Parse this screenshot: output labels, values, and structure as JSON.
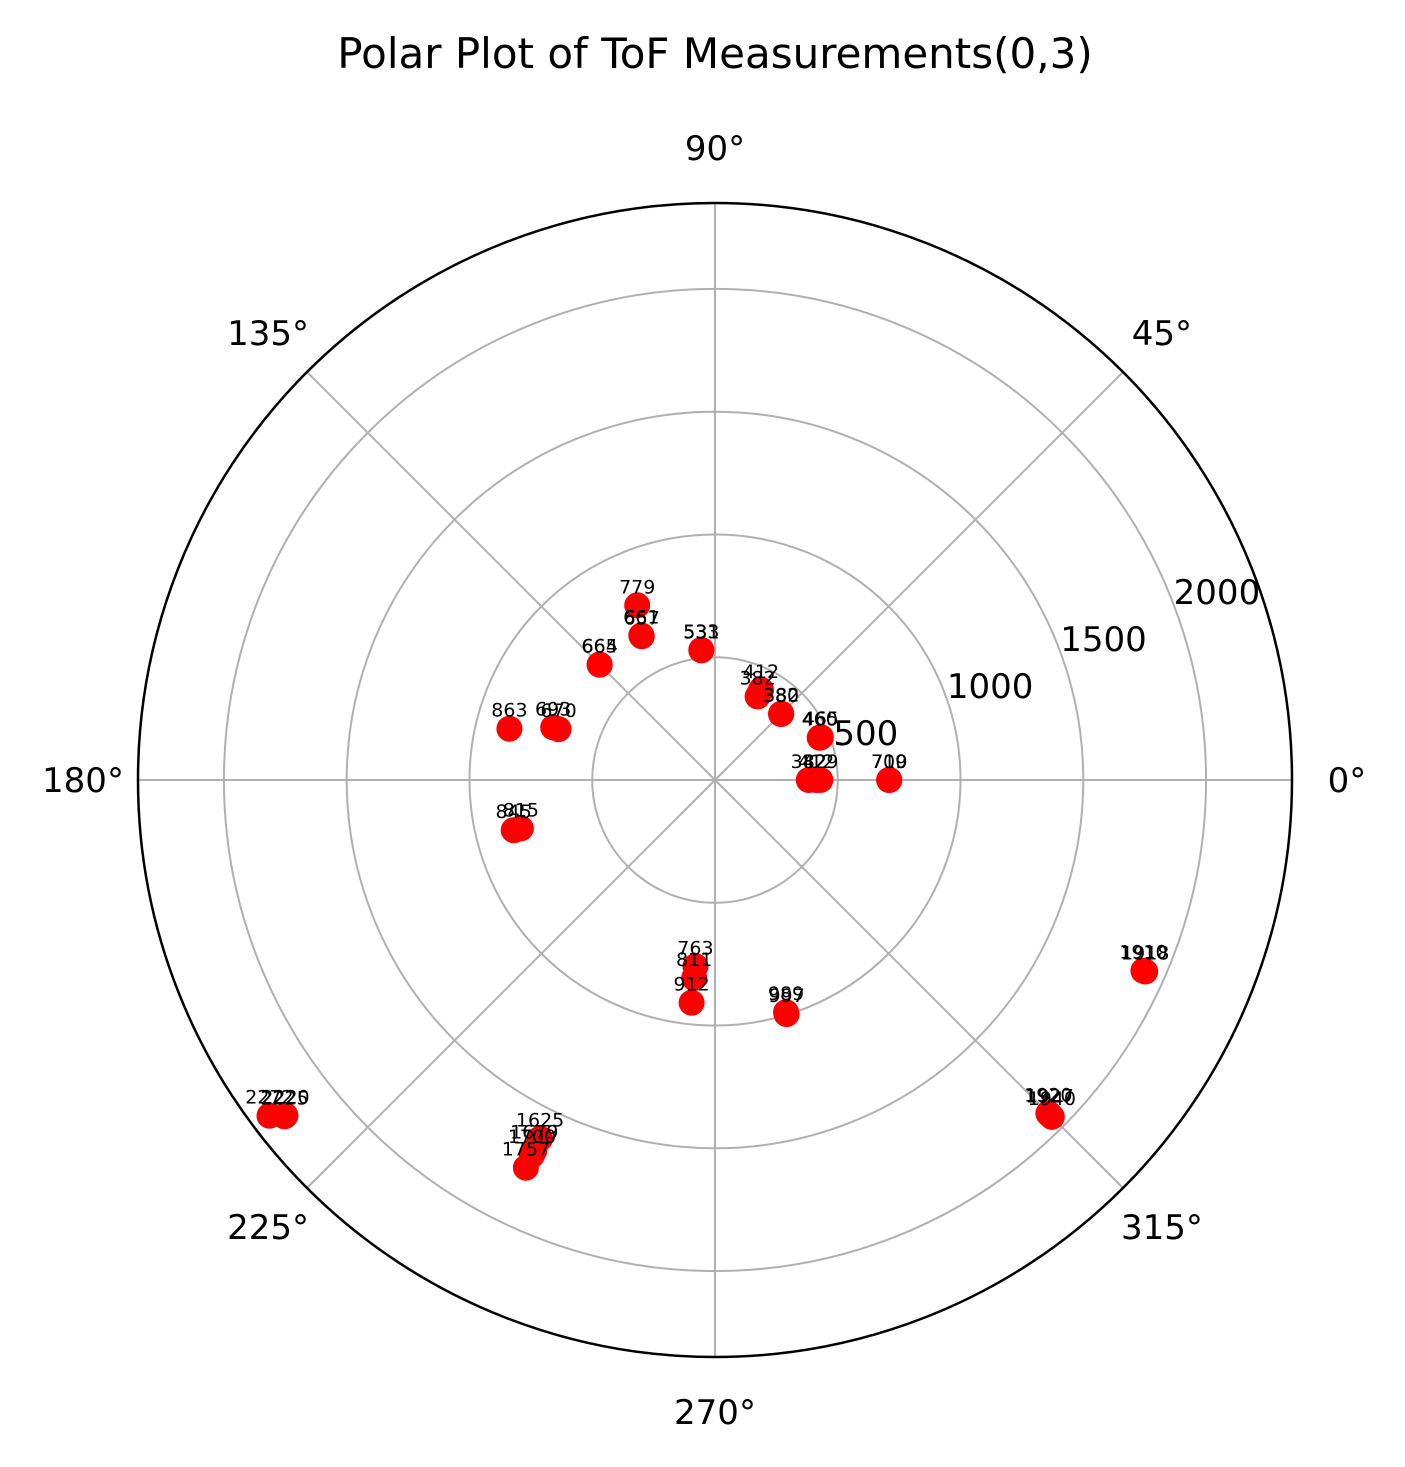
{
  "chart_data": {
    "type": "scatter",
    "projection": "polar",
    "title": "Polar Plot of ToF Measurements(0,3)",
    "theta_unit": "degrees",
    "theta_ticks": [
      "0°",
      "45°",
      "90°",
      "135°",
      "180°",
      "225°",
      "270°",
      "315°"
    ],
    "r_ticks": [
      "500",
      "1000",
      "1500",
      "2000"
    ],
    "r_tick_values": [
      500,
      1000,
      1500,
      2000
    ],
    "rlim": [
      0,
      2350
    ],
    "grid": true,
    "marker_color": "#ff0000",
    "points": [
      {
        "theta": 0,
        "r": 412,
        "label": "412"
      },
      {
        "theta": 0,
        "r": 382,
        "label": "382"
      },
      {
        "theta": 0,
        "r": 429,
        "label": "429"
      },
      {
        "theta": 0,
        "r": 709,
        "label": "709"
      },
      {
        "theta": 0,
        "r": 710,
        "label": "710"
      },
      {
        "theta": 22,
        "r": 465,
        "label": "465"
      },
      {
        "theta": 22,
        "r": 460,
        "label": "460"
      },
      {
        "theta": 45,
        "r": 380,
        "label": "380"
      },
      {
        "theta": 45,
        "r": 382,
        "label": "382"
      },
      {
        "theta": 63,
        "r": 412,
        "label": "412"
      },
      {
        "theta": 63,
        "r": 382,
        "label": "382"
      },
      {
        "theta": 96,
        "r": 533,
        "label": "533"
      },
      {
        "theta": 96,
        "r": 531,
        "label": "531"
      },
      {
        "theta": 117,
        "r": 657,
        "label": "657"
      },
      {
        "theta": 117,
        "r": 661,
        "label": "661"
      },
      {
        "theta": 114,
        "r": 779,
        "label": "779"
      },
      {
        "theta": 135,
        "r": 664,
        "label": "664"
      },
      {
        "theta": 135,
        "r": 665,
        "label": "665"
      },
      {
        "theta": 162,
        "r": 693,
        "label": "693"
      },
      {
        "theta": 162,
        "r": 670,
        "label": "670"
      },
      {
        "theta": 166,
        "r": 863,
        "label": "863"
      },
      {
        "theta": 194,
        "r": 815,
        "label": "815"
      },
      {
        "theta": 194,
        "r": 845,
        "label": "845"
      },
      {
        "theta": 264,
        "r": 763,
        "label": "763"
      },
      {
        "theta": 264,
        "r": 811,
        "label": "811"
      },
      {
        "theta": 264,
        "r": 912,
        "label": "912"
      },
      {
        "theta": 287,
        "r": 997,
        "label": "997"
      },
      {
        "theta": 287,
        "r": 989,
        "label": "989"
      },
      {
        "theta": 244,
        "r": 1625,
        "label": "1625"
      },
      {
        "theta": 244,
        "r": 1679,
        "label": "1679"
      },
      {
        "theta": 244,
        "r": 1700,
        "label": "1700"
      },
      {
        "theta": 244,
        "r": 1757,
        "label": "1757"
      },
      {
        "theta": 218,
        "r": 2225,
        "label": "2225"
      },
      {
        "theta": 218,
        "r": 2220,
        "label": "2220"
      },
      {
        "theta": 217,
        "r": 2272,
        "label": "2272"
      },
      {
        "theta": 336,
        "r": 1910,
        "label": "1910"
      },
      {
        "theta": 336,
        "r": 1918,
        "label": "1918"
      },
      {
        "theta": 315,
        "r": 1920,
        "label": "1920"
      },
      {
        "theta": 315,
        "r": 1927,
        "label": "1927"
      },
      {
        "theta": 315,
        "r": 1940,
        "label": "1940"
      }
    ]
  }
}
